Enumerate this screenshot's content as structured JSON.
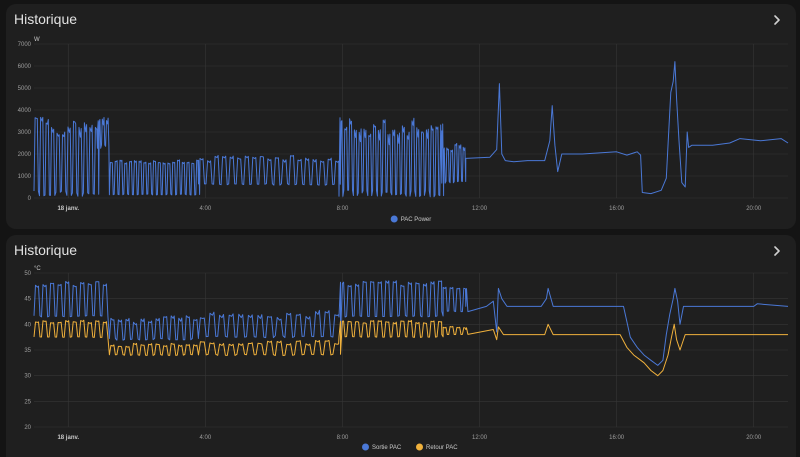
{
  "cards": [
    {
      "title": "Historique"
    },
    {
      "title": "Historique"
    }
  ],
  "colors": {
    "blue": "#4a78d6",
    "orange": "#f0b13c",
    "grid": "#363636",
    "card": "#1f1f1f"
  },
  "icons": {
    "expand": "chevron-right-icon"
  },
  "chart_data": [
    {
      "type": "line",
      "unit": "W",
      "ylim": [
        0,
        7000
      ],
      "yticks": [
        0,
        1000,
        2000,
        3000,
        4000,
        5000,
        6000,
        7000
      ],
      "xlim": [
        -1.0,
        21.0
      ],
      "xticks": [
        {
          "x": 0,
          "label": "18 janv.",
          "bold": true
        },
        {
          "x": 4,
          "label": "4:00"
        },
        {
          "x": 8,
          "label": "8:00"
        },
        {
          "x": 12,
          "label": "12:00"
        },
        {
          "x": 16,
          "label": "16:00"
        },
        {
          "x": 20,
          "label": "20:00"
        }
      ],
      "grid": true,
      "legend": "bottom-center",
      "series": [
        {
          "name": "PAC Power",
          "color": "#4a78d6",
          "segments": [
            {
              "x0": -1.0,
              "x1": 0.85,
              "mode": "cycle",
              "period": 0.16,
              "low": 150,
              "high": 3300,
              "jitter": 900
            },
            {
              "x0": 0.85,
              "x1": 1.2,
              "mode": "cycle",
              "period": 0.12,
              "low": 2300,
              "high": 3400,
              "jitter": 600
            },
            {
              "x0": 1.2,
              "x1": 3.8,
              "mode": "cycle",
              "period": 0.14,
              "low": 150,
              "high": 1650,
              "jitter": 150
            },
            {
              "x0": 3.8,
              "x1": 7.9,
              "mode": "cycle",
              "period": 0.22,
              "low": 600,
              "high": 1800,
              "jitter": 250
            },
            {
              "x0": 7.9,
              "x1": 10.9,
              "mode": "cycle",
              "period": 0.14,
              "low": 150,
              "high": 3300,
              "jitter": 1000
            },
            {
              "x0": 10.9,
              "x1": 11.6,
              "mode": "cycle",
              "period": 0.12,
              "low": 700,
              "high": 2300,
              "jitter": 300
            }
          ],
          "points": [
            [
              11.6,
              1800
            ],
            [
              12.3,
              1850
            ],
            [
              12.5,
              2200
            ],
            [
              12.58,
              5200
            ],
            [
              12.65,
              2000
            ],
            [
              12.75,
              1700
            ],
            [
              13.0,
              1650
            ],
            [
              13.4,
              1700
            ],
            [
              13.9,
              1700
            ],
            [
              14.05,
              2600
            ],
            [
              14.12,
              4200
            ],
            [
              14.2,
              2400
            ],
            [
              14.28,
              1200
            ],
            [
              14.4,
              2000
            ],
            [
              15.0,
              2000
            ],
            [
              15.5,
              2050
            ],
            [
              16.0,
              2100
            ],
            [
              16.3,
              1950
            ],
            [
              16.6,
              2100
            ],
            [
              16.7,
              1950
            ],
            [
              16.75,
              250
            ],
            [
              17.0,
              200
            ],
            [
              17.3,
              350
            ],
            [
              17.45,
              900
            ],
            [
              17.52,
              3000
            ],
            [
              17.58,
              4800
            ],
            [
              17.65,
              5300
            ],
            [
              17.7,
              6200
            ],
            [
              17.75,
              4500
            ],
            [
              17.82,
              2600
            ],
            [
              17.9,
              700
            ],
            [
              18.0,
              500
            ],
            [
              18.06,
              3000
            ],
            [
              18.1,
              2300
            ],
            [
              18.2,
              2400
            ],
            [
              18.8,
              2400
            ],
            [
              19.3,
              2500
            ],
            [
              19.6,
              2700
            ],
            [
              20.2,
              2600
            ],
            [
              20.8,
              2700
            ],
            [
              21.0,
              2500
            ]
          ]
        }
      ]
    },
    {
      "type": "line",
      "unit": "°C",
      "ylim": [
        20,
        50
      ],
      "yticks": [
        20,
        25,
        30,
        35,
        40,
        45,
        50
      ],
      "xlim": [
        -1.0,
        21.0
      ],
      "xticks": [
        {
          "x": 0,
          "label": "18 janv.",
          "bold": true
        },
        {
          "x": 4,
          "label": "4:00"
        },
        {
          "x": 8,
          "label": "8:00"
        },
        {
          "x": 12,
          "label": "12:00"
        },
        {
          "x": 16,
          "label": "16:00"
        },
        {
          "x": 20,
          "label": "20:00"
        }
      ],
      "grid": true,
      "legend": "bottom-center",
      "series": [
        {
          "name": "Sortie PAC",
          "color": "#4a78d6",
          "segments": [
            {
              "x0": -1.0,
              "x1": 1.2,
              "mode": "cycle",
              "period": 0.22,
              "low": 41.5,
              "high": 48,
              "jitter": 1
            },
            {
              "x0": 1.2,
              "x1": 3.8,
              "mode": "cycle",
              "period": 0.22,
              "low": 37,
              "high": 41,
              "jitter": 1.5
            },
            {
              "x0": 3.8,
              "x1": 7.9,
              "mode": "cycle",
              "period": 0.28,
              "low": 37.5,
              "high": 42,
              "jitter": 1.5
            },
            {
              "x0": 7.9,
              "x1": 10.9,
              "mode": "cycle",
              "period": 0.22,
              "low": 41.5,
              "high": 48,
              "jitter": 1
            },
            {
              "x0": 10.9,
              "x1": 11.6,
              "mode": "cycle",
              "period": 0.2,
              "low": 42.5,
              "high": 47,
              "jitter": 0.5
            }
          ],
          "points": [
            [
              11.6,
              43.5
            ],
            [
              12.2,
              43.5
            ],
            [
              12.4,
              44.5
            ],
            [
              12.5,
              38.5
            ],
            [
              12.55,
              47
            ],
            [
              12.65,
              45
            ],
            [
              12.8,
              43.5
            ],
            [
              13.8,
              43.5
            ],
            [
              13.95,
              45
            ],
            [
              14.0,
              47
            ],
            [
              14.15,
              43.5
            ],
            [
              15.0,
              43.5
            ],
            [
              16.2,
              43.5
            ],
            [
              16.4,
              37.5
            ],
            [
              16.6,
              35.5
            ],
            [
              16.8,
              34
            ],
            [
              17.0,
              33
            ],
            [
              17.2,
              32
            ],
            [
              17.35,
              33
            ],
            [
              17.45,
              38
            ],
            [
              17.55,
              42
            ],
            [
              17.65,
              45
            ],
            [
              17.7,
              47
            ],
            [
              17.78,
              44.5
            ],
            [
              17.85,
              40
            ],
            [
              17.95,
              43.5
            ],
            [
              18.1,
              43.5
            ],
            [
              20.0,
              43.5
            ],
            [
              20.1,
              44
            ],
            [
              21.0,
              43.5
            ]
          ]
        },
        {
          "name": "Retour PAC",
          "color": "#f0b13c",
          "segments": [
            {
              "x0": -1.0,
              "x1": 1.2,
              "mode": "cycle",
              "period": 0.22,
              "low": 37.5,
              "high": 40.5,
              "jitter": 0.5
            },
            {
              "x0": 1.2,
              "x1": 3.8,
              "mode": "cycle",
              "period": 0.22,
              "low": 34,
              "high": 36,
              "jitter": 0.6
            },
            {
              "x0": 3.8,
              "x1": 7.9,
              "mode": "cycle",
              "period": 0.28,
              "low": 34,
              "high": 36.5,
              "jitter": 0.8
            },
            {
              "x0": 7.9,
              "x1": 10.9,
              "mode": "cycle",
              "period": 0.22,
              "low": 37.5,
              "high": 40.5,
              "jitter": 0.5
            },
            {
              "x0": 10.9,
              "x1": 11.6,
              "mode": "cycle",
              "period": 0.2,
              "low": 38,
              "high": 39.5,
              "jitter": 0.3
            }
          ],
          "points": [
            [
              11.6,
              39
            ],
            [
              12.4,
              39
            ],
            [
              12.5,
              37
            ],
            [
              12.55,
              39.5
            ],
            [
              12.7,
              38
            ],
            [
              13.9,
              38
            ],
            [
              14.0,
              40
            ],
            [
              14.15,
              38
            ],
            [
              16.1,
              38
            ],
            [
              16.3,
              35.5
            ],
            [
              16.5,
              34
            ],
            [
              16.8,
              32.5
            ],
            [
              17.0,
              31
            ],
            [
              17.2,
              30
            ],
            [
              17.35,
              31
            ],
            [
              17.5,
              34
            ],
            [
              17.6,
              37.5
            ],
            [
              17.68,
              40
            ],
            [
              17.75,
              37
            ],
            [
              17.85,
              35
            ],
            [
              18.0,
              38
            ],
            [
              21.0,
              38
            ]
          ]
        }
      ]
    }
  ]
}
